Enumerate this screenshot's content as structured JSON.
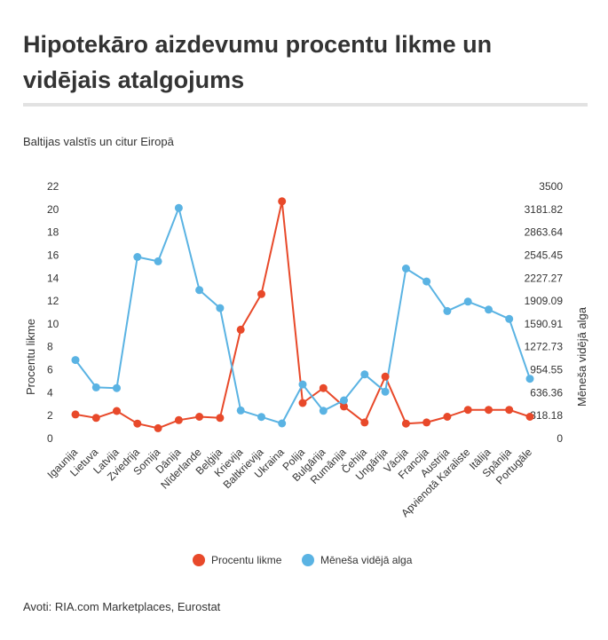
{
  "header": {
    "title": "Hipotekāro aizdevumu procentu likme un vidējais atalgojums",
    "subtitle": "Baltijas valstīs un citur Eiropā"
  },
  "footer": {
    "source": "Avoti: RIA.com Marketplaces, Eurostat"
  },
  "chart_data": {
    "type": "line",
    "categories": [
      "Igaunija",
      "Lietuva",
      "Latvija",
      "Zviedrija",
      "Somija",
      "Dānija",
      "Nīderlande",
      "Beļģija",
      "Krievija",
      "Baltkrievija",
      "Ukraina",
      "Polija",
      "Bulgārija",
      "Rumānija",
      "Čehija",
      "Ungārija",
      "Vācija",
      "Francija",
      "Austrija",
      "Apvienotā Karaliste",
      "Itālija",
      "Spānija",
      "Portugāle"
    ],
    "y_left": {
      "label": "Procentu likme",
      "ylim": [
        0,
        22
      ],
      "ticks": [
        "0",
        "2",
        "4",
        "6",
        "8",
        "10",
        "12",
        "14",
        "16",
        "18",
        "20",
        "22"
      ]
    },
    "y_right": {
      "label": "Mēneša vidējā alga",
      "ylim": [
        0,
        3500
      ],
      "ticks": [
        "0",
        "318.18",
        "636.36",
        "954.55",
        "1272.73",
        "1590.91",
        "1909.09",
        "2227.27",
        "2545.45",
        "2863.64",
        "3181.82",
        "3500"
      ]
    },
    "series": [
      {
        "name": "Procentu likme",
        "axis": "left",
        "color": "#e8492a",
        "values": [
          2.1,
          1.8,
          2.4,
          1.3,
          0.9,
          1.6,
          1.9,
          1.8,
          9.5,
          12.6,
          20.7,
          3.1,
          4.4,
          2.8,
          1.4,
          5.4,
          1.3,
          1.4,
          1.9,
          2.5,
          2.5,
          2.5,
          1.9
        ]
      },
      {
        "name": "Mēneša vidējā alga",
        "axis": "right",
        "color": "#5ab3e3",
        "values": [
          1090,
          710,
          700,
          2520,
          2460,
          3200,
          2060,
          1810,
          390,
          300,
          210,
          750,
          385,
          530,
          890,
          650,
          2360,
          2180,
          1770,
          1900,
          1790,
          1660,
          830
        ]
      }
    ],
    "legend": {
      "position": "bottom",
      "items": [
        "Procentu likme",
        "Mēneša vidējā alga"
      ]
    },
    "grid": false
  }
}
